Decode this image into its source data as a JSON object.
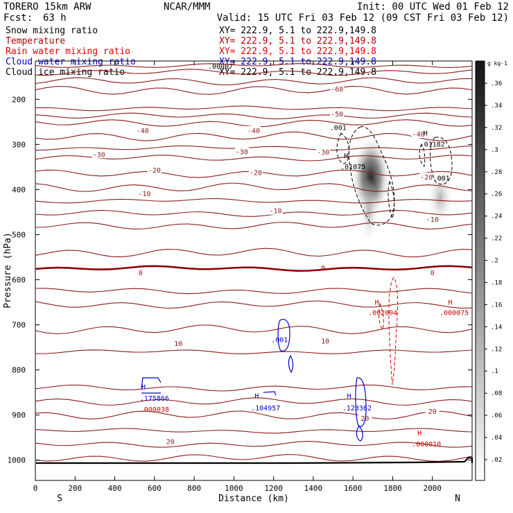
{
  "header": {
    "model": "TORERO  15km ARW",
    "org": "NCAR/MMM",
    "init": "Init: 00 UTC Wed 01 Feb 12",
    "fcst_label": "Fcst:",
    "fcst_value": "63 h",
    "valid": "Valid: 15 UTC Fri 03 Feb 12 (09 CST Fri 03 Feb 12)"
  },
  "legend": [
    {
      "label": "Snow mixing ratio",
      "xy": "XY= 222.9,  5.1 to 222.9,149.8",
      "color": "#000000"
    },
    {
      "label": "Temperature",
      "xy": "XY= 222.9,  5.1 to 222.9,149.8",
      "color": "#b00000"
    },
    {
      "label": "Rain water mixing ratio",
      "xy": "XY= 222.9,  5.1 to 222.9,149.8",
      "color": "#e00000"
    },
    {
      "label": "Cloud water mixing ratio",
      "xy": "XY= 222.9,  5.1 to 222.9,149.8",
      "color": "#0000c8"
    },
    {
      "label": "Cloud ice mixing ratio",
      "xy": "XY= 222.9,  5.1 to 222.9,149.8",
      "color": "#000000"
    }
  ],
  "overlap_text": ".00007",
  "chart_data": {
    "type": "cross-section contour",
    "xlabel": "Distance (km)",
    "ylabel": "Pressure (hPa)",
    "xlim": [
      0,
      2200
    ],
    "ylim": [
      1045,
      115
    ],
    "xticks": [
      0,
      200,
      400,
      600,
      800,
      1000,
      1200,
      1400,
      1600,
      1800,
      2000
    ],
    "yticks": [
      200,
      300,
      400,
      500,
      600,
      700,
      800,
      900,
      1000
    ],
    "x_end_labels": {
      "left": "S",
      "right": "N"
    },
    "colorbar": {
      "units": "g kg-1",
      "ticks": [
        ".36",
        ".34",
        ".32",
        ".3",
        ".28",
        ".26",
        ".24",
        ".22",
        ".2",
        ".18",
        ".16",
        ".14",
        ".12",
        ".1",
        ".08",
        ".06",
        ".04",
        ".02"
      ],
      "range": [
        0,
        0.38
      ]
    },
    "isotherms": [
      {
        "temp": -60,
        "p": 125
      },
      {
        "temp": -60,
        "p": 140
      },
      {
        "temp": -60,
        "p": 160
      },
      {
        "temp": -60,
        "p": 180
      },
      {
        "temp": -50,
        "p": 220
      },
      {
        "temp": -50,
        "p": 237
      },
      {
        "temp": -40,
        "p": 253
      },
      {
        "temp": -40,
        "p": 282
      },
      {
        "temp": -30,
        "p": 308
      },
      {
        "temp": -30,
        "p": 330
      },
      {
        "temp": -20,
        "p": 365
      },
      {
        "temp": -20,
        "p": 395
      },
      {
        "temp": -10,
        "p": 425
      },
      {
        "temp": -10,
        "p": 453
      },
      {
        "temp": -10,
        "p": 480
      },
      {
        "temp": -10,
        "p": 540
      },
      {
        "temp": 0,
        "p": 575
      },
      {
        "temp": 10,
        "p": 625
      },
      {
        "temp": 10,
        "p": 655
      },
      {
        "temp": 10,
        "p": 710
      },
      {
        "temp": 10,
        "p": 760
      },
      {
        "temp": 20,
        "p": 840
      },
      {
        "temp": 20,
        "p": 870
      },
      {
        "temp": 20,
        "p": 900
      },
      {
        "temp": 20,
        "p": 935
      },
      {
        "temp": 20,
        "p": 965
      },
      {
        "temp": 20,
        "p": 995
      }
    ],
    "isotherm_labels": [
      {
        "text": "-60",
        "x": 1520,
        "p": 178
      },
      {
        "text": "-50",
        "x": 1520,
        "p": 233
      },
      {
        "text": "-40",
        "x": 540,
        "p": 270
      },
      {
        "text": "-40",
        "x": 1100,
        "p": 270
      },
      {
        "text": "-40",
        "x": 1930,
        "p": 278
      },
      {
        "text": "-30",
        "x": 320,
        "p": 323
      },
      {
        "text": "-30",
        "x": 1040,
        "p": 317
      },
      {
        "text": "-30",
        "x": 1450,
        "p": 318
      },
      {
        "text": "-20",
        "x": 600,
        "p": 358
      },
      {
        "text": "-20",
        "x": 1110,
        "p": 363
      },
      {
        "text": "-20",
        "x": 1970,
        "p": 373
      },
      {
        "text": "-10",
        "x": 550,
        "p": 410
      },
      {
        "text": "-10",
        "x": 1210,
        "p": 448
      },
      {
        "text": "-10",
        "x": 2000,
        "p": 467
      },
      {
        "text": "0",
        "x": 530,
        "p": 585
      },
      {
        "text": "0",
        "x": 1450,
        "p": 575
      },
      {
        "text": "0",
        "x": 2000,
        "p": 585
      },
      {
        "text": "10",
        "x": 720,
        "p": 742
      },
      {
        "text": "10",
        "x": 1460,
        "p": 737
      },
      {
        "text": "20",
        "x": 1660,
        "p": 908
      },
      {
        "text": "20",
        "x": 680,
        "p": 960
      },
      {
        "text": "20",
        "x": 2000,
        "p": 893
      }
    ],
    "maxima_labels": [
      {
        "text": "H",
        "x": 1565,
        "p": 330,
        "color": "#000000"
      },
      {
        "text": ".01075",
        "x": 1600,
        "p": 355,
        "color": "#000000"
      },
      {
        "text": "H",
        "x": 1965,
        "p": 280,
        "color": "#000000"
      },
      {
        "text": ".01182",
        "x": 2000,
        "p": 305,
        "color": "#000000"
      },
      {
        "text": ".001",
        "x": 1525,
        "p": 268,
        "color": "#000000"
      },
      {
        "text": ".001",
        "x": 2045,
        "p": 380,
        "color": "#000000"
      },
      {
        "text": "H",
        "x": 1720,
        "p": 655,
        "color": "#cc0000"
      },
      {
        "text": ".002004",
        "x": 1750,
        "p": 678,
        "color": "#cc0000"
      },
      {
        "text": "H",
        "x": 2090,
        "p": 655,
        "color": "#cc0000"
      },
      {
        "text": ".000075",
        "x": 2110,
        "p": 678,
        "color": "#cc0000"
      },
      {
        "text": "H",
        "x": 1935,
        "p": 945,
        "color": "#cc0000"
      },
      {
        "text": ".000010",
        "x": 1970,
        "p": 970,
        "color": "#cc0000"
      },
      {
        "text": "H",
        "x": 545,
        "p": 843,
        "color": "#0000c8"
      },
      {
        "text": ".175866",
        "x": 600,
        "p": 868,
        "color": "#0000c8"
      },
      {
        "text": ".000038",
        "x": 600,
        "p": 893,
        "color": "#cc0000"
      },
      {
        "text": "H",
        "x": 1115,
        "p": 863,
        "color": "#0000c8"
      },
      {
        "text": ".104957",
        "x": 1160,
        "p": 890,
        "color": "#0000c8"
      },
      {
        "text": "H",
        "x": 1580,
        "p": 863,
        "color": "#0000c8"
      },
      {
        "text": ".123362",
        "x": 1620,
        "p": 890,
        "color": "#0000c8"
      },
      {
        "text": ".001",
        "x": 1230,
        "p": 738,
        "color": "#0000c8"
      }
    ]
  }
}
